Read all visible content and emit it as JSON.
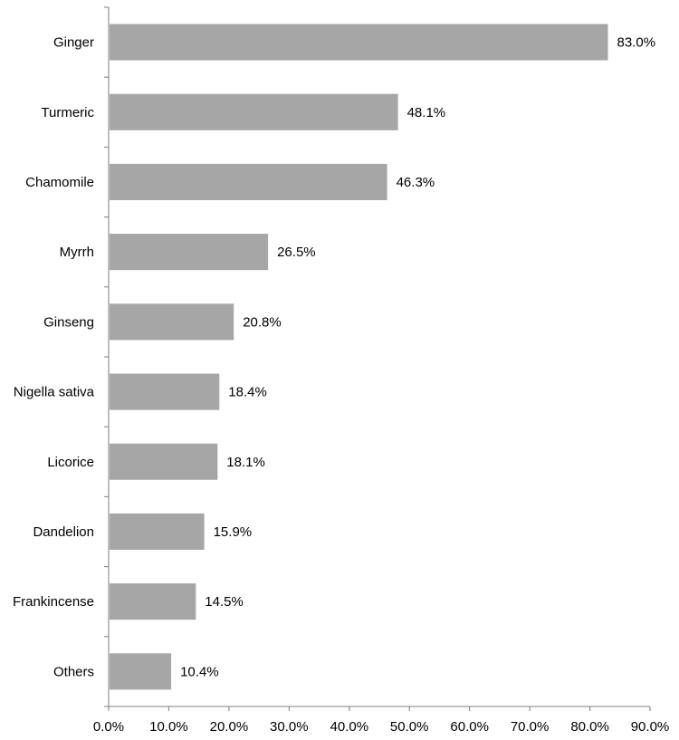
{
  "chart_data": {
    "type": "bar",
    "orientation": "horizontal",
    "categories": [
      "Ginger",
      "Turmeric",
      "Chamomile",
      "Myrrh",
      "Ginseng",
      "Nigella sativa",
      "Licorice",
      "Dandelion",
      "Frankincense",
      "Others"
    ],
    "values": [
      83.0,
      48.1,
      46.3,
      26.5,
      20.8,
      18.4,
      18.1,
      15.9,
      14.5,
      10.4
    ],
    "value_labels": [
      "83.0%",
      "48.1%",
      "46.3%",
      "26.5%",
      "20.8%",
      "18.4%",
      "18.1%",
      "15.9%",
      "14.5%",
      "10.4%"
    ],
    "xlim": [
      0,
      90
    ],
    "x_ticks": [
      0,
      10,
      20,
      30,
      40,
      50,
      60,
      70,
      80,
      90
    ],
    "x_tick_labels": [
      "0.0%",
      "10.0%",
      "20.0%",
      "30.0%",
      "40.0%",
      "50.0%",
      "60.0%",
      "70.0%",
      "80.0%",
      "90.0%"
    ],
    "title": "",
    "xlabel": "",
    "ylabel": "",
    "grid": false,
    "legend": "none",
    "bar_color": "#a6a6a6",
    "axis_color": "#7f7f7f"
  }
}
